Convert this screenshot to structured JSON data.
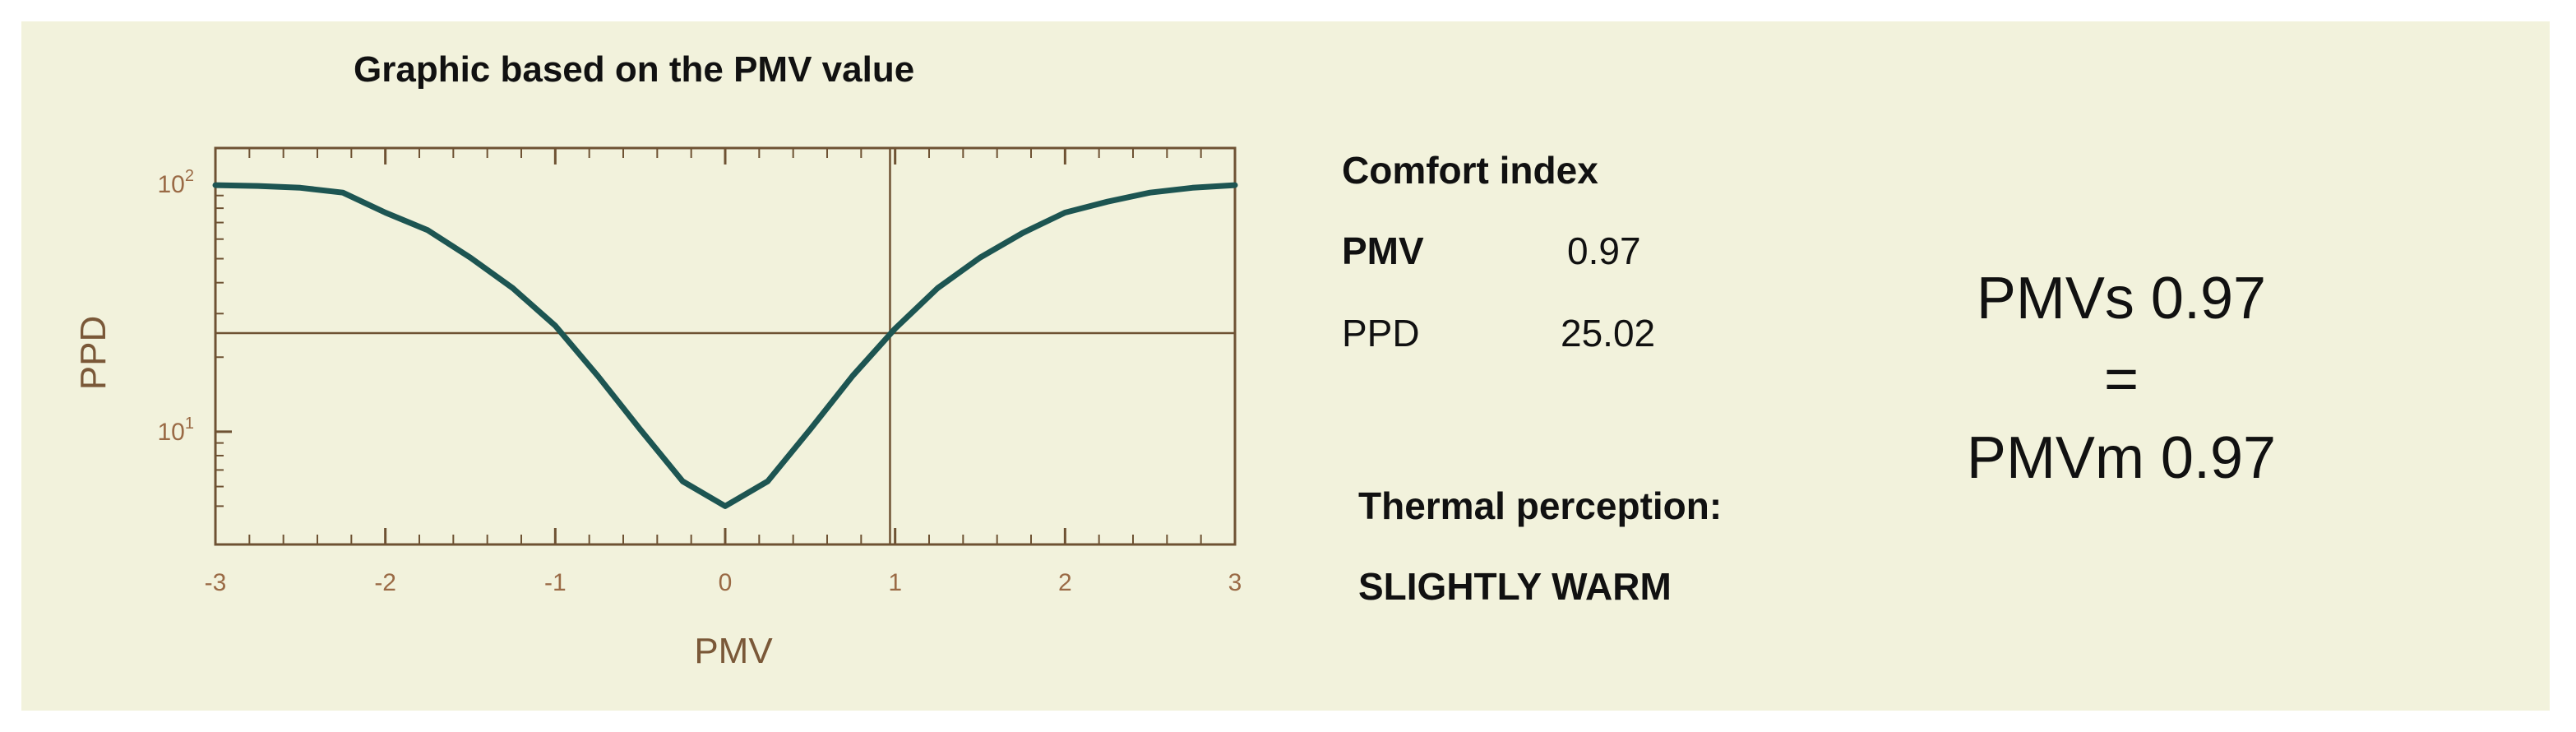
{
  "chart_data": {
    "type": "line",
    "title": "Graphic based on the PMV value",
    "xlabel": "PMV",
    "ylabel": "PPD",
    "xlim": [
      -3,
      3
    ],
    "yscale": "log",
    "ylim": [
      3.5,
      140
    ],
    "x_ticks": [
      "-3",
      "-2",
      "-1",
      "0",
      "1",
      "2",
      "3"
    ],
    "y_ticks": [
      {
        "value": 100,
        "base": "10",
        "exp": "2"
      },
      {
        "value": 10,
        "base": "10",
        "exp": "1"
      }
    ],
    "grid": false,
    "series": [
      {
        "x": [
          -3,
          -2.75,
          -2.5,
          -2.25,
          -2,
          -1.75,
          -1.5,
          -1.25,
          -1,
          -0.75,
          -0.5,
          -0.25,
          0,
          0.25,
          0.5,
          0.75,
          1,
          1.25,
          1.5,
          1.75,
          2,
          2.25,
          2.5,
          2.75,
          3
        ],
        "y": [
          99.1,
          98.4,
          96.7,
          92.5,
          76.8,
          65.2,
          50.5,
          38.0,
          26.8,
          16.8,
          10.2,
          6.3,
          5.0,
          6.3,
          10.2,
          16.8,
          26.1,
          38.0,
          50.5,
          63.5,
          76.8,
          85.0,
          92.5,
          96.7,
          99.1
        ]
      }
    ],
    "markers": {
      "pmv": 0.97,
      "ppd": 25.02
    }
  },
  "comfort": {
    "title": "Comfort index",
    "pmv_label": "PMV",
    "pmv_value": "0.97",
    "ppd_label": "PPD",
    "ppd_value": "25.02"
  },
  "thermal": {
    "label": "Thermal perception:",
    "value": "SLIGHTLY WARM"
  },
  "summary": {
    "pmvs": "PMVs 0.97",
    "equals": "=",
    "pmvm": "PMVm 0.97"
  },
  "colors": {
    "background": "#f2f2dc",
    "curve": "#1d5552",
    "axis": "#6e5233",
    "tick_label": "#9a6a45"
  }
}
